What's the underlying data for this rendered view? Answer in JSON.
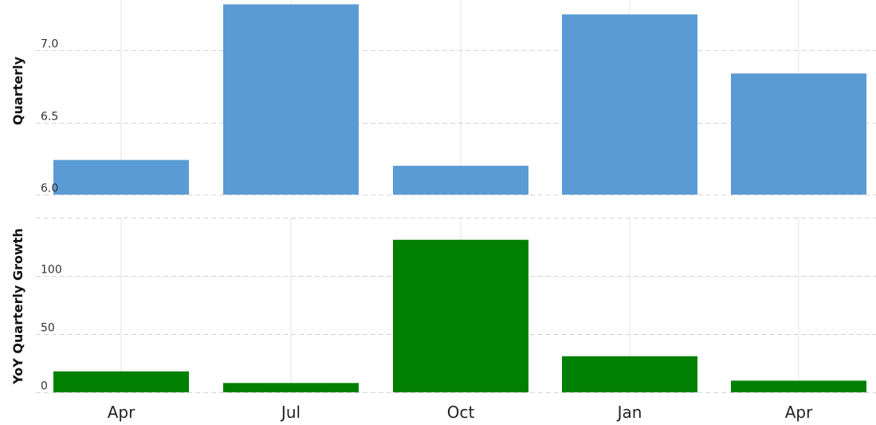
{
  "chart_data": [
    {
      "type": "bar",
      "ylabel": "Quarterly",
      "categories": [
        "Apr",
        "Jul",
        "Oct",
        "Jan",
        "Apr"
      ],
      "values": [
        6.24,
        7.32,
        6.2,
        7.25,
        6.84
      ],
      "ylim": [
        6.0,
        7.35
      ],
      "yticks": [
        6.0,
        6.5,
        7.0
      ],
      "ytick_labels": [
        "6.0",
        "6.5",
        "7.0"
      ],
      "color": "#5b9bd5",
      "grid": true
    },
    {
      "type": "bar",
      "ylabel": "YoY Quarterly Growth",
      "categories": [
        "Apr",
        "Jul",
        "Oct",
        "Jan",
        "Apr"
      ],
      "values": [
        18,
        8,
        131,
        31,
        10
      ],
      "ylim": [
        0,
        150
      ],
      "yticks": [
        0,
        50,
        100,
        150
      ],
      "ytick_labels": [
        "0",
        "50",
        "100",
        ""
      ],
      "color": "#008000",
      "grid": true
    }
  ]
}
